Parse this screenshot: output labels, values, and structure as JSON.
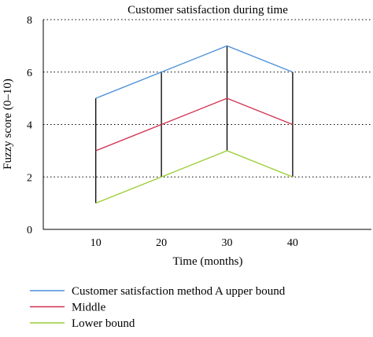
{
  "chart_data": {
    "type": "line",
    "title": "Customer satisfaction during time",
    "xlabel": "Time (months)",
    "ylabel": "Fuzzy score (0–10)",
    "x": [
      10,
      20,
      30,
      40
    ],
    "xlim": [
      2,
      52
    ],
    "ylim": [
      0,
      8
    ],
    "xticks": [
      10,
      20,
      30,
      40
    ],
    "yticks": [
      0,
      2,
      4,
      6,
      8
    ],
    "grid": "horizontal dotted",
    "legend_position": "bottom-left",
    "series": [
      {
        "name": "Customer satisfaction method A upper bound",
        "color": "#4a90d9",
        "values": [
          5,
          6,
          7,
          6
        ]
      },
      {
        "name": "Middle",
        "color": "#d0314f",
        "values": [
          3,
          4,
          5,
          4
        ]
      },
      {
        "name": "Lower bound",
        "color": "#9acd32",
        "values": [
          1,
          2,
          3,
          2
        ]
      }
    ],
    "range_bars_color": "#000000"
  }
}
